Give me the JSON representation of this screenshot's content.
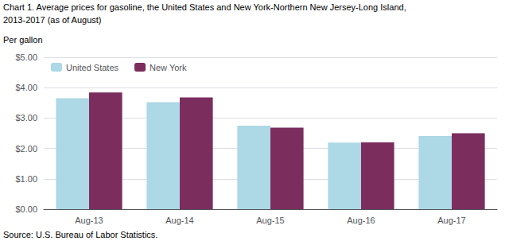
{
  "chart_data": {
    "type": "bar",
    "title": "Chart 1. Average prices for gasoline, the United States and New York-Northern New Jersey-Long Island,",
    "subtitle": "2013-2017 (as of August)",
    "y_label": "Per gallon",
    "annotations": [
      "Source: U.S. Bureau of Labor Statistics."
    ],
    "categories": [
      "Aug-13",
      "Aug-14",
      "Aug-15",
      "Aug-16",
      "Aug-17"
    ],
    "series": [
      {
        "name": "United States",
        "color": "#ADD8E6",
        "values": [
          3.65,
          3.52,
          2.75,
          2.19,
          2.41
        ]
      },
      {
        "name": "New York",
        "color": "#7B2D5E",
        "values": [
          3.84,
          3.68,
          2.68,
          2.2,
          2.5
        ]
      }
    ],
    "ylim": [
      0,
      5.0
    ],
    "yticks": [
      {
        "value": 0.0,
        "label": "$0.00"
      },
      {
        "value": 1.0,
        "label": "$1.00"
      },
      {
        "value": 2.0,
        "label": "$2.00"
      },
      {
        "value": 3.0,
        "label": "$3.00"
      },
      {
        "value": 4.0,
        "label": "$4.00"
      },
      {
        "value": 5.0,
        "label": "$5.00"
      }
    ],
    "grid": true,
    "legend": "upper left"
  }
}
